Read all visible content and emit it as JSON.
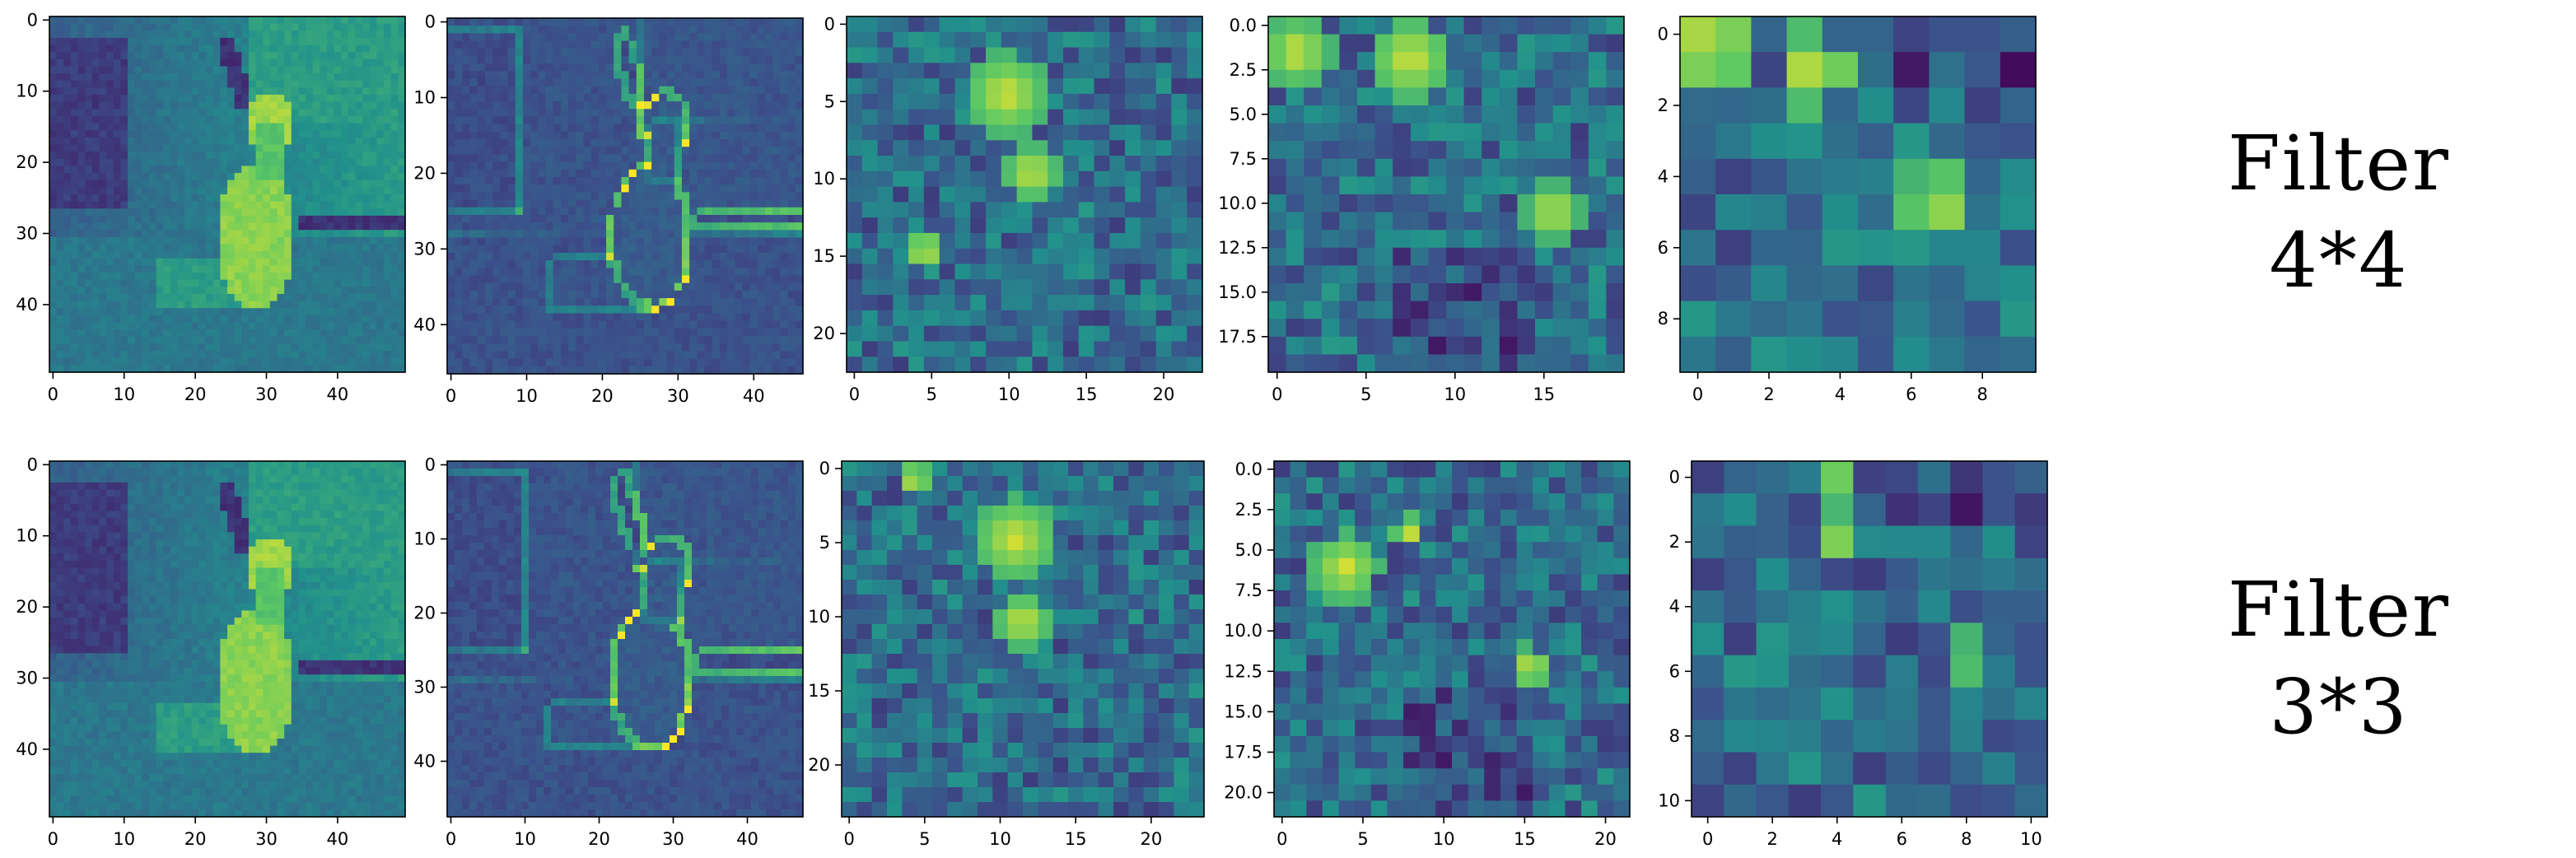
{
  "colormap": [
    "#440154",
    "#3b528b",
    "#21918c",
    "#5ec962",
    "#fde725"
  ],
  "labels": {
    "top": [
      "Filter",
      "4*4"
    ],
    "bottom": [
      "Filter",
      "3*3"
    ]
  },
  "chart_data": [
    {
      "type": "heatmap",
      "panel_id": "r0c0",
      "size": [
        50,
        50
      ],
      "content": "image",
      "xticks": [
        0,
        10,
        20,
        30,
        40
      ],
      "yticks": [
        0,
        10,
        20,
        30,
        40
      ],
      "xlim": [
        -0.5,
        49.5
      ],
      "ylim": [
        49.5,
        -0.5
      ]
    },
    {
      "type": "heatmap",
      "panel_id": "r0c1",
      "size": [
        47,
        47
      ],
      "content": "image-edges",
      "xticks": [
        0,
        10,
        20,
        30,
        40
      ],
      "yticks": [
        0,
        10,
        20,
        30,
        40
      ],
      "xlim": [
        -0.5,
        46.5
      ],
      "ylim": [
        46.5,
        -0.5
      ]
    },
    {
      "type": "heatmap",
      "panel_id": "r0c2",
      "size": [
        23,
        23
      ],
      "content": "feature",
      "xticks": [
        0,
        5,
        10,
        15,
        20
      ],
      "yticks": [
        0,
        5,
        10,
        15,
        20
      ],
      "xlim": [
        -0.5,
        22.5
      ],
      "ylim": [
        22.5,
        -0.5
      ]
    },
    {
      "type": "heatmap",
      "panel_id": "r0c3",
      "size": [
        20,
        20
      ],
      "content": "feature",
      "xticks": [
        0,
        5,
        10,
        15
      ],
      "yticks": [
        0.0,
        2.5,
        5.0,
        7.5,
        10.0,
        12.5,
        15.0,
        17.5
      ],
      "ytick_labels": [
        "0.0",
        "2.5",
        "5.0",
        "7.5",
        "10.0",
        "12.5",
        "15.0",
        "17.5"
      ],
      "xlim": [
        -0.5,
        19.5
      ],
      "ylim": [
        19.5,
        -0.5
      ]
    },
    {
      "type": "heatmap",
      "panel_id": "r0c4",
      "size": [
        10,
        10
      ],
      "content": "feature",
      "xticks": [
        0,
        2,
        4,
        6,
        8
      ],
      "yticks": [
        0,
        2,
        4,
        6,
        8
      ],
      "xlim": [
        -0.5,
        9.5
      ],
      "ylim": [
        9.5,
        -0.5
      ]
    },
    {
      "type": "heatmap",
      "panel_id": "r1c0",
      "size": [
        50,
        50
      ],
      "content": "image",
      "xticks": [
        0,
        10,
        20,
        30,
        40
      ],
      "yticks": [
        0,
        10,
        20,
        30,
        40
      ],
      "xlim": [
        -0.5,
        49.5
      ],
      "ylim": [
        49.5,
        -0.5
      ]
    },
    {
      "type": "heatmap",
      "panel_id": "r1c1",
      "size": [
        48,
        48
      ],
      "content": "image-edges",
      "xticks": [
        0,
        10,
        20,
        30,
        40
      ],
      "yticks": [
        0,
        10,
        20,
        30,
        40
      ],
      "xlim": [
        -0.5,
        47.5
      ],
      "ylim": [
        47.5,
        -0.5
      ]
    },
    {
      "type": "heatmap",
      "panel_id": "r1c2",
      "size": [
        24,
        24
      ],
      "content": "feature",
      "xticks": [
        0,
        5,
        10,
        15,
        20
      ],
      "yticks": [
        0,
        5,
        10,
        15,
        20
      ],
      "xlim": [
        -0.5,
        23.5
      ],
      "ylim": [
        23.5,
        -0.5
      ]
    },
    {
      "type": "heatmap",
      "panel_id": "r1c3",
      "size": [
        22,
        22
      ],
      "content": "feature",
      "xticks": [
        0,
        5,
        10,
        15,
        20
      ],
      "yticks": [
        0.0,
        2.5,
        5.0,
        7.5,
        10.0,
        12.5,
        15.0,
        17.5,
        20.0
      ],
      "ytick_labels": [
        "0.0",
        "2.5",
        "5.0",
        "7.5",
        "10.0",
        "12.5",
        "15.0",
        "17.5",
        "20.0"
      ],
      "xlim": [
        -0.5,
        21.5
      ],
      "ylim": [
        21.5,
        -0.5
      ]
    },
    {
      "type": "heatmap",
      "panel_id": "r1c4",
      "size": [
        11,
        11
      ],
      "content": "feature",
      "xticks": [
        0,
        2,
        4,
        6,
        8,
        10
      ],
      "yticks": [
        0,
        2,
        4,
        6,
        8,
        10
      ],
      "xlim": [
        -0.5,
        10.5
      ],
      "ylim": [
        10.5,
        -0.5
      ]
    }
  ]
}
